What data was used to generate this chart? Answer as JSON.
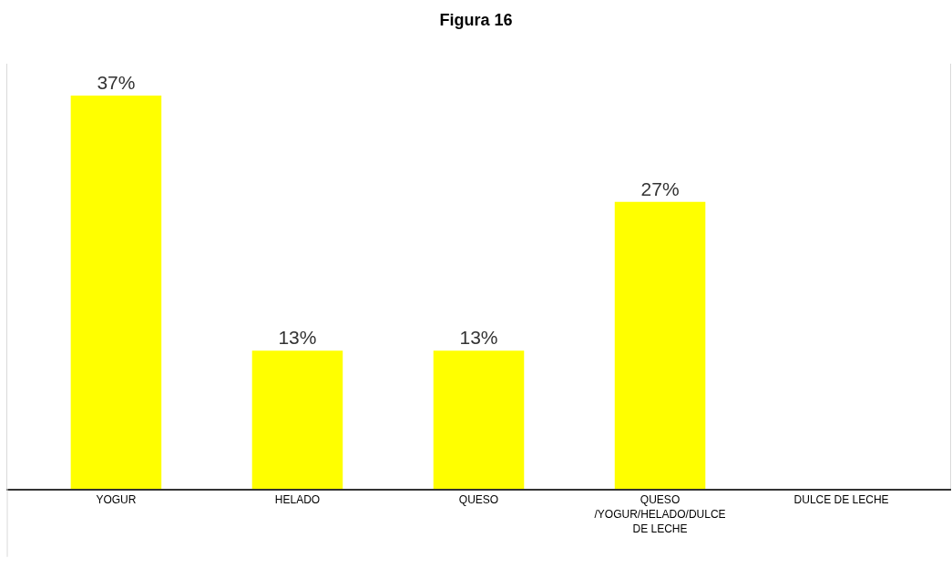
{
  "chart_data": {
    "type": "bar",
    "title": "Figura 16",
    "categories": [
      "YOGUR",
      "HELADO",
      "QUESO",
      "QUESO /YOGUR/HELADO/DULCE DE LECHE",
      "DULCE DE LECHE"
    ],
    "values": [
      37,
      13,
      13,
      27,
      0
    ],
    "value_labels": [
      "37%",
      "13%",
      "13%",
      "27%",
      null
    ],
    "color": "#ffff00",
    "ylim": [
      0,
      40
    ],
    "legend": false
  }
}
